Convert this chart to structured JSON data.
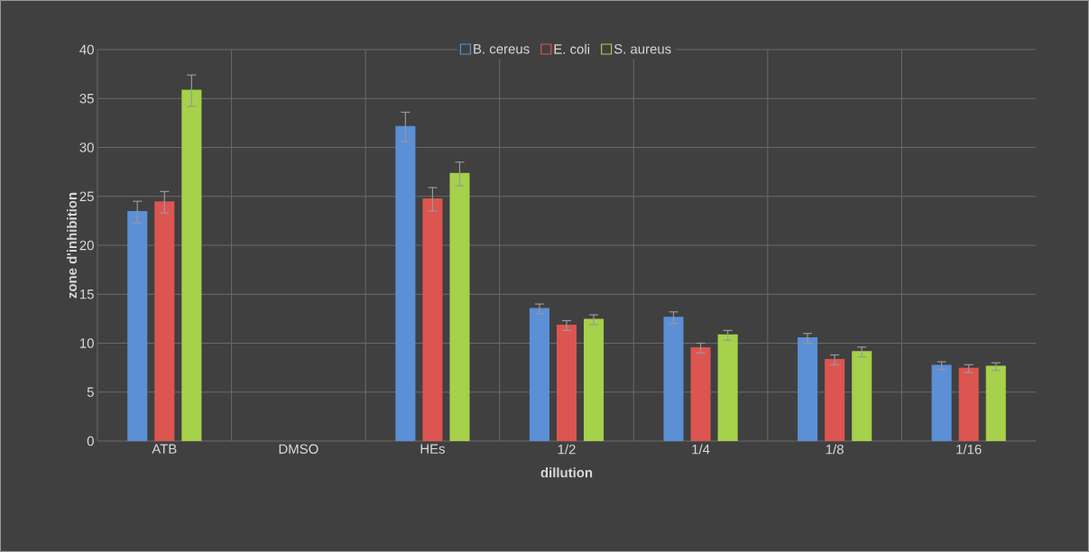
{
  "chart_data": {
    "type": "bar",
    "xlabel": "dillution",
    "ylabel": "zone d'inhibition",
    "categories": [
      "ATB",
      "DMSO",
      "HEs",
      "1/2",
      "1/4",
      "1/8",
      "1/16"
    ],
    "series": [
      {
        "name": "B. cereus",
        "color": "#5b8fd6",
        "values": [
          23.4,
          null,
          32.1,
          13.5,
          12.6,
          10.5,
          7.7
        ],
        "errors": [
          1.1,
          null,
          1.5,
          0.5,
          0.6,
          0.5,
          0.4
        ]
      },
      {
        "name": "E. coli",
        "color": "#dd5550",
        "values": [
          24.4,
          null,
          24.7,
          11.8,
          9.5,
          8.3,
          7.4
        ],
        "errors": [
          1.1,
          null,
          1.2,
          0.5,
          0.5,
          0.5,
          0.4
        ]
      },
      {
        "name": "S. aureus",
        "color": "#a6d14a",
        "values": [
          35.8,
          null,
          27.3,
          12.4,
          10.8,
          9.1,
          7.6
        ],
        "errors": [
          1.6,
          null,
          1.2,
          0.5,
          0.5,
          0.5,
          0.4
        ]
      }
    ],
    "ylim": [
      0,
      40
    ],
    "yticks": [
      0,
      5,
      10,
      15,
      20,
      25,
      30,
      35,
      40
    ],
    "grid": true,
    "legend": "top"
  }
}
